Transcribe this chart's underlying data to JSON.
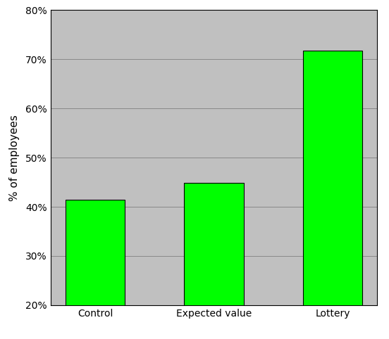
{
  "categories": [
    "Control",
    "Expected value",
    "Lottery"
  ],
  "values": [
    0.415,
    0.449,
    0.718
  ],
  "bar_color": "#00ff00",
  "bar_edgecolor": "#000000",
  "ylabel": "% of employees",
  "ylim": [
    0.2,
    0.8
  ],
  "yticks": [
    0.2,
    0.3,
    0.4,
    0.5,
    0.6,
    0.7,
    0.8
  ],
  "background_color": "#c0c0c0",
  "grid_color": "#000000",
  "bar_width": 0.5,
  "ylabel_fontsize": 11,
  "tick_fontsize": 10,
  "fig_facecolor": "#ffffff",
  "spine_color": "#000000"
}
